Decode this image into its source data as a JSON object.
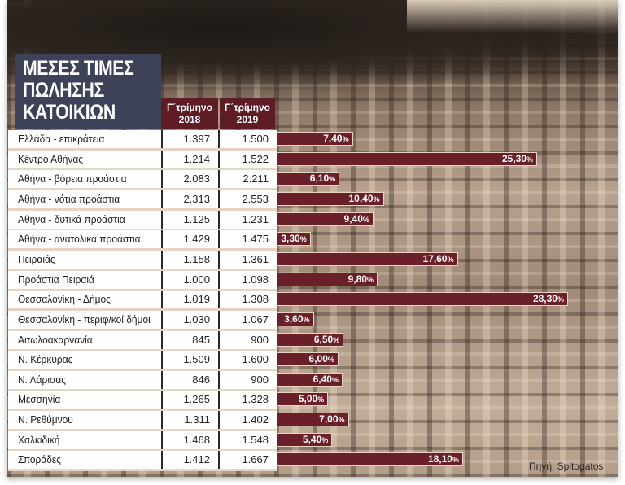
{
  "title_lines": [
    "ΜΕΣΕΣ ΤΙΜΕΣ",
    "ΠΩΛΗΣΗΣ",
    "ΚΑΤΟΙΚΙΩΝ"
  ],
  "columns": [
    {
      "line1": "Γ΄τρίμηνο",
      "line2": "2018"
    },
    {
      "line1": "Γ΄τρίμηνο",
      "line2": "2019"
    }
  ],
  "source": "Πηγή: Spitogatos",
  "colors": {
    "bar": "#6a2029",
    "header": "#5e1d25",
    "title_box": "#3d4259"
  },
  "chart_data": {
    "type": "table",
    "title": "ΜΕΣΕΣ ΤΙΜΕΣ ΠΩΛΗΣΗΣ ΚΑΤΟΙΚΙΩΝ",
    "columns": [
      "Γ΄τρίμηνο 2018",
      "Γ΄τρίμηνο 2019"
    ],
    "rows": [
      {
        "region": "Ελλάδα - επικράτεια",
        "q3_2018": "1.397",
        "q3_2019": "1.500",
        "change": 7.4,
        "change_label": "7,40"
      },
      {
        "region": "Κέντρο Αθήνας",
        "q3_2018": "1.214",
        "q3_2019": "1.522",
        "change": 25.3,
        "change_label": "25,30"
      },
      {
        "region": "Αθήνα - βόρεια προάστια",
        "q3_2018": "2.083",
        "q3_2019": "2.211",
        "change": 6.1,
        "change_label": "6,10"
      },
      {
        "region": "Αθήνα - νότια προάστια",
        "q3_2018": "2.313",
        "q3_2019": "2.553",
        "change": 10.4,
        "change_label": "10,40"
      },
      {
        "region": "Αθήνα - δυτικά προάστια",
        "q3_2018": "1.125",
        "q3_2019": "1.231",
        "change": 9.4,
        "change_label": "9,40"
      },
      {
        "region": "Αθήνα - ανατολικά προάστια",
        "q3_2018": "1.429",
        "q3_2019": "1.475",
        "change": 3.3,
        "change_label": "3,30"
      },
      {
        "region": "Πειραιάς",
        "q3_2018": "1.158",
        "q3_2019": "1.361",
        "change": 17.6,
        "change_label": "17,60"
      },
      {
        "region": "Προάστια Πειραιά",
        "q3_2018": "1.000",
        "q3_2019": "1.098",
        "change": 9.8,
        "change_label": "9,80"
      },
      {
        "region": "Θεσσαλονίκη - Δήμος",
        "q3_2018": "1.019",
        "q3_2019": "1.308",
        "change": 28.3,
        "change_label": "28,30"
      },
      {
        "region": "Θεσσαλονίκη - περιφ/κοί δήμοι",
        "q3_2018": "1.030",
        "q3_2019": "1.067",
        "change": 3.6,
        "change_label": "3,60"
      },
      {
        "region": "Αιτωλοακαρνανία",
        "q3_2018": "845",
        "q3_2019": "900",
        "change": 6.5,
        "change_label": "6,50"
      },
      {
        "region": "Ν. Κέρκυρας",
        "q3_2018": "1.509",
        "q3_2019": "1.600",
        "change": 6.0,
        "change_label": "6,00"
      },
      {
        "region": "Ν. Λάρισας",
        "q3_2018": "846",
        "q3_2019": "900",
        "change": 6.4,
        "change_label": "6,40"
      },
      {
        "region": "Μεσσηνία",
        "q3_2018": "1.265",
        "q3_2019": "1.328",
        "change": 5.0,
        "change_label": "5,00"
      },
      {
        "region": "Ν. Ρεθύμνου",
        "q3_2018": "1.311",
        "q3_2019": "1.402",
        "change": 7.0,
        "change_label": "7,00"
      },
      {
        "region": "Χαλκιδική",
        "q3_2018": "1.468",
        "q3_2019": "1.548",
        "change": 5.4,
        "change_label": "5,40"
      },
      {
        "region": "Σποράδες",
        "q3_2018": "1.412",
        "q3_2019": "1.667",
        "change": 18.1,
        "change_label": "18,10"
      }
    ],
    "percent_sign": "%"
  }
}
